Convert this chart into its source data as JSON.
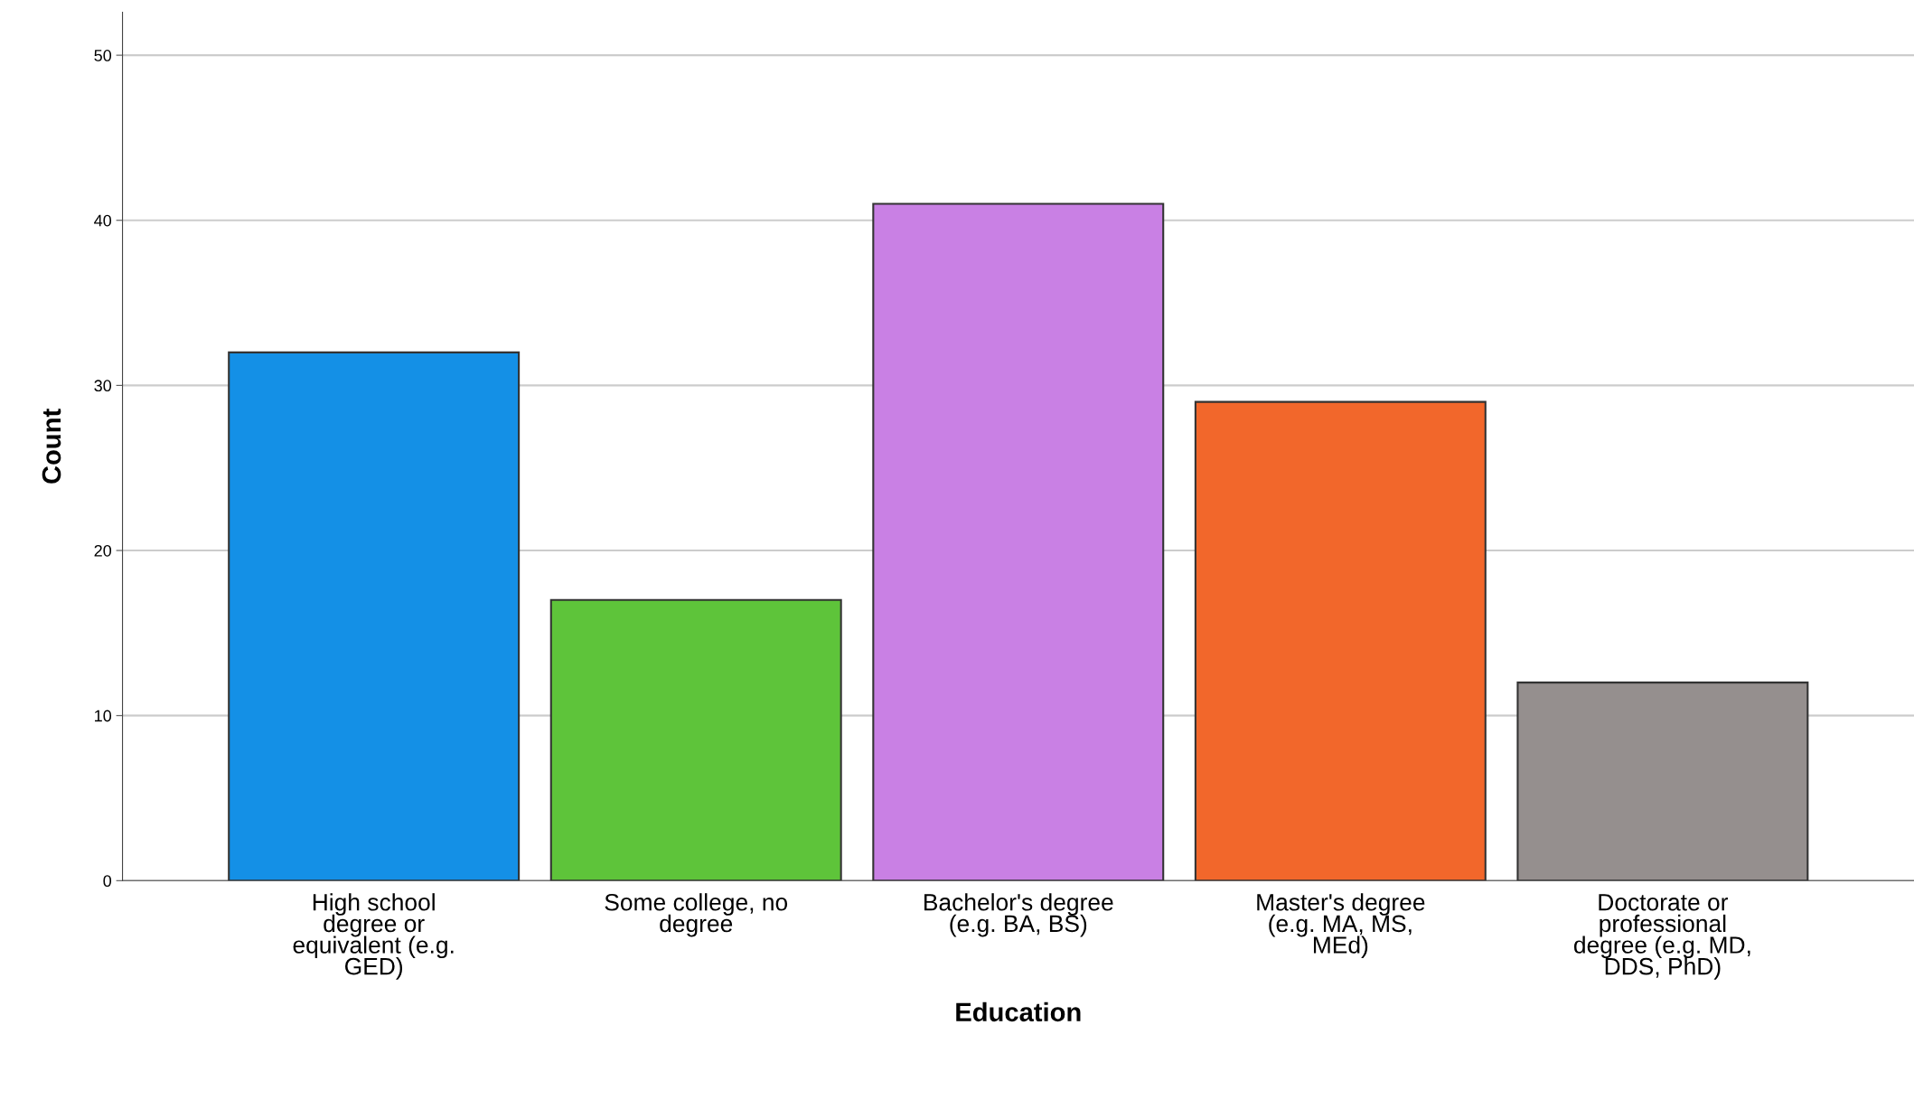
{
  "chart_data": {
    "type": "bar",
    "xlabel": "Education",
    "ylabel": "Count",
    "categories": [
      "High school\ndegree or\nequivalent (e.g.\nGED)",
      "Some college, no\ndegree",
      "Bachelor's degree\n(e.g. BA, BS)",
      "Master's degree\n(e.g. MA, MS,\nMEd)",
      "Doctorate or\nprofessional\ndegree (e.g. MD,\nDDS, PhD)"
    ],
    "values": [
      32,
      17,
      41,
      29,
      12
    ],
    "colors": [
      "#1490e6",
      "#5ec43a",
      "#c980e4",
      "#f2672b",
      "#958f8e"
    ],
    "ylim": [
      0,
      52.6
    ],
    "yticks": [
      0,
      10,
      20,
      30,
      40,
      50
    ],
    "grid": "y",
    "legend": false
  }
}
